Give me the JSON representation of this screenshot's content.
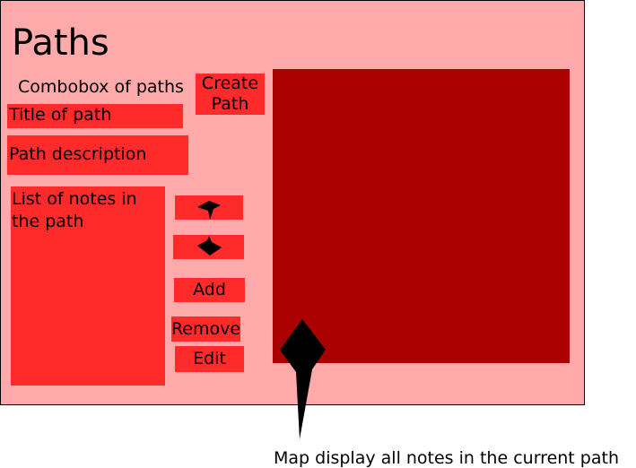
{
  "header": {
    "title": "Paths"
  },
  "path_selector": {
    "combobox_label": "Combobox of paths",
    "create_button_label": "Create\nPath"
  },
  "path_fields": {
    "title_label": "Title of path",
    "description_label": "Path description"
  },
  "notes_list": {
    "label": "List of notes in\nthe path"
  },
  "note_actions": {
    "move_up_icon": "arrow-up-icon",
    "move_down_icon": "arrow-down-icon",
    "add_label": "Add",
    "remove_label": "Remove",
    "edit_label": "Edit"
  },
  "map": {
    "annotation": "Map display all notes in the current path"
  },
  "colors": {
    "window_bg": "#ffaaaa",
    "widget": "#ff2a2a",
    "map": "#aa0000",
    "arrow": "#000000"
  }
}
